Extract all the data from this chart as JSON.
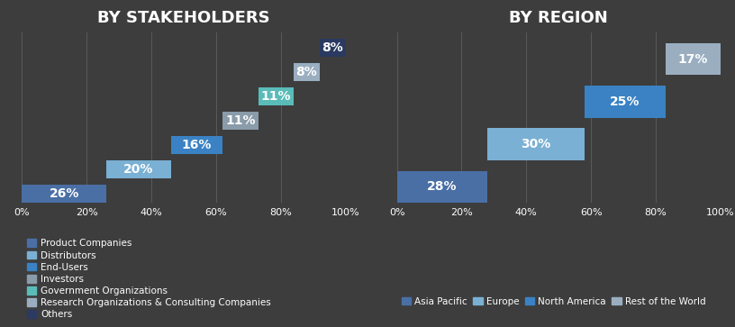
{
  "left_title": "BY STAKEHOLDERS",
  "right_title": "BY REGION",
  "bg_color": "#3d3d3d",
  "left_bars": [
    {
      "label": "Product Companies",
      "value": 26,
      "color": "#4a6fa5"
    },
    {
      "label": "Distributors",
      "value": 20,
      "color": "#7ab0d4"
    },
    {
      "label": "End-Users",
      "value": 16,
      "color": "#3a82c4"
    },
    {
      "label": "Investors",
      "value": 11,
      "color": "#8a9baa"
    },
    {
      "label": "Government Organizations",
      "value": 11,
      "color": "#5abcb8"
    },
    {
      "label": "Research Organizations & Consulting Companies",
      "value": 8,
      "color": "#9aaec0"
    },
    {
      "label": "Others",
      "value": 8,
      "color": "#2a3a60"
    }
  ],
  "right_bars": [
    {
      "label": "Asia Pacific",
      "value": 28,
      "color": "#4a6fa5"
    },
    {
      "label": "Europe",
      "value": 30,
      "color": "#7ab0d4"
    },
    {
      "label": "North America",
      "value": 25,
      "color": "#3a82c4"
    },
    {
      "label": "Rest of the World",
      "value": 17,
      "color": "#9aaec0"
    }
  ],
  "title_fontsize": 13,
  "label_fontsize": 10,
  "legend_fontsize": 7.5,
  "tick_fontsize": 8,
  "text_color": "white"
}
